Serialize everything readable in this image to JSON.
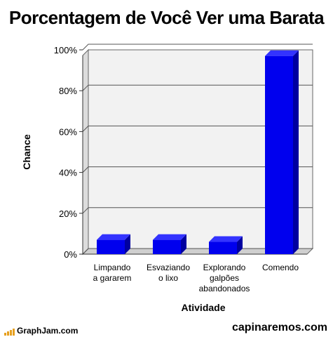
{
  "chart_data": {
    "type": "bar",
    "title": "Porcentagem de Você Ver uma Barata",
    "xlabel": "Atividade",
    "ylabel": "Chance",
    "categories": [
      [
        "Limpando",
        "a gararem"
      ],
      [
        "Esvaziando",
        "o lixo"
      ],
      [
        "Explorando",
        "galpões",
        "abandonados"
      ],
      [
        "Comendo"
      ]
    ],
    "values": [
      7,
      7,
      6,
      97
    ],
    "ylim": [
      0,
      100
    ],
    "yticks": [
      "0%",
      "20%",
      "40%",
      "60%",
      "80%",
      "100%"
    ],
    "ytick_values": [
      0,
      20,
      40,
      60,
      80,
      100
    ],
    "grid": true,
    "bar_color": "#0000ee",
    "bar_side_color": "#0000a0",
    "bar_top_color": "#3333ff",
    "plot_bg": "#f2f2f2",
    "grid_color": "#555555"
  },
  "footer": {
    "left": "GraphJam.com",
    "right": "capinaremos.com"
  }
}
